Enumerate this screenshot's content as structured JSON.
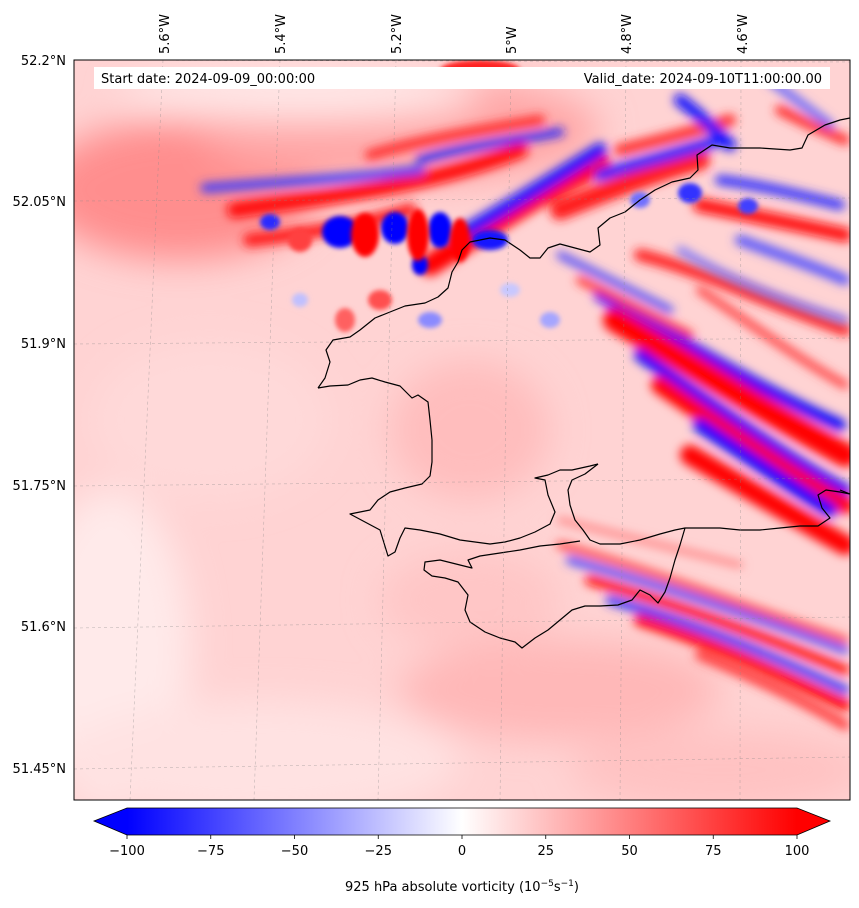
{
  "map": {
    "start_date": "Start date: 2024-09-09_00:00:00",
    "valid_date": "Valid_date: 2024-09-10T11:00:00.00",
    "lon_labels": [
      "5.6°W",
      "5.4°W",
      "5.2°W",
      "5°W",
      "4.8°W",
      "4.6°W"
    ],
    "lat_labels": [
      "52.2°N",
      "52.05°N",
      "51.9°N",
      "51.75°N",
      "51.6°N",
      "51.45°N"
    ],
    "gridlines": true
  },
  "colorbar": {
    "label": "925 hPa absolute vorticity (10",
    "label_exp1": "−5",
    "label_mid": "s",
    "label_exp2": "−1",
    "label_end": ")",
    "ticks": [
      "−100",
      "−75",
      "−50",
      "−25",
      "0",
      "25",
      "50",
      "75",
      "100"
    ],
    "min": -100,
    "max": 100,
    "extend": "both",
    "colormap": "bwr"
  },
  "colors": {
    "negative": "#0000ff",
    "neutral": "#ffffff",
    "positive": "#ff0000",
    "coastline": "#000000"
  }
}
